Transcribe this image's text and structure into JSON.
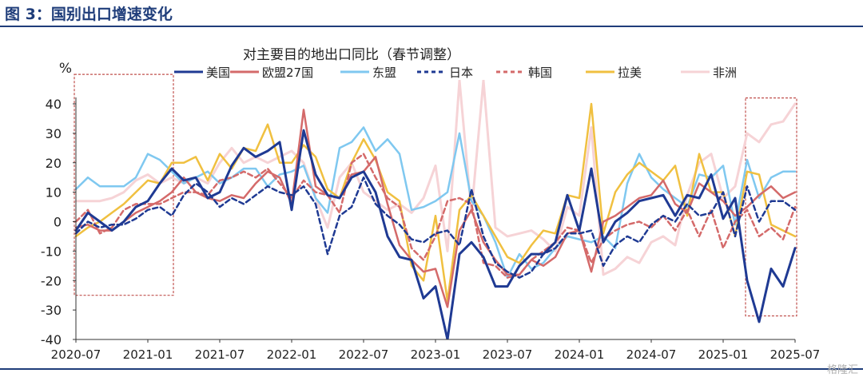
{
  "figure_title": "图 3：国别出口增速变化",
  "watermark": "格隆汇",
  "colors": {
    "accent": "#1f3d7a",
    "highlight_box": "#c0504d"
  },
  "chart_data": {
    "type": "line",
    "title": "对主要目的地出口同比（春节调整）",
    "ylabel": "%",
    "xlabel": "",
    "ylim": [
      -40,
      40
    ],
    "yticks": [
      -40,
      -30,
      -20,
      -10,
      0,
      10,
      20,
      30,
      40
    ],
    "xticks": [
      "2020-07",
      "2021-01",
      "2021-07",
      "2022-01",
      "2022-07",
      "2023-01",
      "2023-07",
      "2024-01",
      "2024-07",
      "2025-01",
      "2025-07"
    ],
    "x": [
      "2020-07",
      "2020-08",
      "2020-09",
      "2020-10",
      "2020-11",
      "2020-12",
      "2021-01",
      "2021-02",
      "2021-03",
      "2021-04",
      "2021-05",
      "2021-06",
      "2021-07",
      "2021-08",
      "2021-09",
      "2021-10",
      "2021-11",
      "2021-12",
      "2022-01",
      "2022-02",
      "2022-03",
      "2022-04",
      "2022-05",
      "2022-06",
      "2022-07",
      "2022-08",
      "2022-09",
      "2022-10",
      "2022-11",
      "2022-12",
      "2023-01",
      "2023-02",
      "2023-03",
      "2023-04",
      "2023-05",
      "2023-06",
      "2023-07",
      "2023-08",
      "2023-09",
      "2023-10",
      "2023-11",
      "2023-12",
      "2024-01",
      "2024-02",
      "2024-03",
      "2024-04",
      "2024-05",
      "2024-06",
      "2024-07",
      "2024-08",
      "2024-09",
      "2024-10",
      "2024-11",
      "2024-12",
      "2025-01",
      "2025-02",
      "2025-03",
      "2025-04",
      "2025-05",
      "2025-06",
      "2025-07"
    ],
    "legend_position": "top",
    "grid": false,
    "series": [
      {
        "name": "美国",
        "color": "#1f3a93",
        "dash": "solid",
        "width": 3,
        "values": [
          -3,
          3,
          0,
          -3,
          0,
          5,
          7,
          13,
          18,
          14,
          15,
          8,
          10,
          19,
          25,
          22,
          24,
          27,
          4,
          31,
          16,
          9,
          8,
          15,
          17,
          10,
          -5,
          -12,
          -13,
          -26,
          -22,
          -40,
          -11,
          -7,
          -12,
          -22,
          -22,
          -15,
          -11,
          -11,
          -7,
          9,
          -3,
          18,
          -7,
          0,
          3,
          7,
          8,
          9,
          2,
          9,
          8,
          16,
          1,
          8,
          -20,
          -34,
          -16,
          -22,
          -9
        ],
        "visible_count": 61
      },
      {
        "name": "欧盟27国",
        "color": "#d46a6a",
        "dash": "solid",
        "width": 2.5,
        "values": [
          -2,
          -1,
          -3,
          -3,
          0,
          3,
          5,
          7,
          10,
          15,
          10,
          8,
          7,
          9,
          8,
          13,
          17,
          15,
          6,
          38,
          12,
          9,
          8,
          16,
          17,
          22,
          6,
          -8,
          -13,
          -17,
          -16,
          -29,
          -3,
          4,
          -7,
          -13,
          -18,
          -18,
          -13,
          -15,
          -12,
          -4,
          -3,
          -17,
          0,
          2,
          5,
          8,
          9,
          14,
          6,
          3,
          13,
          10,
          7,
          2,
          5,
          9,
          12,
          8,
          10
        ],
        "visible_count": 61
      },
      {
        "name": "东盟",
        "color": "#7fc8f0",
        "dash": "solid",
        "width": 2.5,
        "values": [
          11,
          15,
          12,
          12,
          12,
          15,
          23,
          21,
          17,
          13,
          15,
          17,
          13,
          15,
          18,
          18,
          12,
          16,
          17,
          19,
          8,
          3,
          25,
          27,
          32,
          24,
          28,
          23,
          4,
          5,
          7,
          10,
          30,
          7,
          2,
          -7,
          -19,
          -11,
          -16,
          -14,
          -9,
          -5,
          -6,
          -7,
          -5,
          -9,
          13,
          23,
          15,
          11,
          8,
          5,
          16,
          15,
          19,
          -1,
          21,
          8,
          15,
          17,
          17
        ],
        "visible_count": 61
      },
      {
        "name": "日本",
        "color": "#1f3a93",
        "dash": "dashed",
        "width": 2.5,
        "values": [
          -4,
          0,
          -2,
          -1,
          -1,
          1,
          4,
          5,
          2,
          9,
          13,
          10,
          5,
          8,
          6,
          9,
          12,
          10,
          9,
          12,
          6,
          -11,
          2,
          5,
          15,
          6,
          2,
          -1,
          -6,
          -7,
          -4,
          -3,
          -8,
          11,
          -5,
          -14,
          -17,
          -19,
          -17,
          -11,
          -9,
          -4,
          -4,
          -3,
          -15,
          -8,
          -5,
          -7,
          -1,
          2,
          0,
          6,
          2,
          3,
          10,
          -5,
          12,
          0,
          7,
          7,
          4
        ],
        "visible_count": 61
      },
      {
        "name": "韩国",
        "color": "#d46a6a",
        "dash": "dashed",
        "width": 2.5,
        "values": [
          0,
          4,
          -4,
          -2,
          4,
          6,
          6,
          6,
          8,
          10,
          10,
          9,
          14,
          15,
          17,
          15,
          18,
          13,
          8,
          14,
          10,
          9,
          3,
          20,
          23,
          15,
          8,
          5,
          -9,
          -13,
          -5,
          7,
          8,
          6,
          -14,
          -15,
          -19,
          -18,
          -13,
          -10,
          -7,
          -2,
          -3,
          -14,
          -6,
          -3,
          -1,
          0,
          -2,
          2,
          -3,
          4,
          -5,
          4,
          -9,
          0,
          4,
          -5,
          -2,
          -6,
          5
        ],
        "visible_count": 61
      },
      {
        "name": "拉美",
        "color": "#f0c040",
        "dash": "solid",
        "width": 2.5,
        "values": [
          -5,
          -2,
          0,
          3,
          6,
          10,
          14,
          13,
          20,
          20,
          22,
          14,
          23,
          18,
          25,
          24,
          33,
          20,
          20,
          26,
          22,
          11,
          8,
          20,
          28,
          21,
          10,
          7,
          -15,
          -20,
          2,
          -27,
          4,
          9,
          2,
          -5,
          -12,
          -14,
          -8,
          -3,
          -4,
          9,
          8,
          40,
          -4,
          10,
          16,
          20,
          17,
          14,
          19,
          2,
          23,
          10,
          10,
          -5,
          17,
          16,
          -1,
          -3,
          -5
        ],
        "visible_count": 61
      },
      {
        "name": "非洲",
        "color": "#f6d3d6",
        "dash": "solid",
        "width": 3,
        "values": [
          7,
          7,
          7,
          8,
          10,
          14,
          16,
          13,
          15,
          13,
          15,
          13,
          20,
          25,
          20,
          22,
          20,
          22,
          24,
          20,
          8,
          -2,
          15,
          20,
          10,
          7,
          4,
          6,
          3,
          8,
          19,
          -10,
          48,
          3,
          48,
          -2,
          -5,
          -4,
          -3,
          -6,
          -10,
          5,
          2,
          32,
          -18,
          -16,
          -12,
          -14,
          -7,
          -5,
          -8,
          9,
          20,
          23,
          8,
          12,
          30,
          27,
          33,
          34,
          40
        ],
        "visible_count": 61
      }
    ],
    "highlight_ranges": [
      {
        "from": "2020-07",
        "to": "2021-03",
        "ylim": [
          -25,
          50
        ]
      },
      {
        "from": "2025-03",
        "to": "2025-07",
        "ylim": [
          -32,
          42
        ]
      }
    ]
  }
}
